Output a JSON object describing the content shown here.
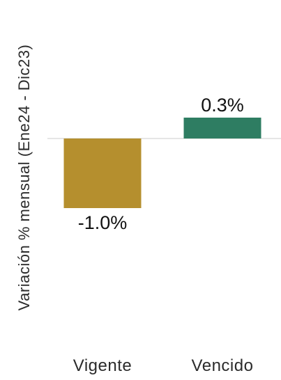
{
  "chart_data": {
    "type": "bar",
    "title": "",
    "xlabel": "",
    "ylabel": "Variación % mensual (Ene24 - Dic23)",
    "categories": [
      "Vigente",
      "Vencido"
    ],
    "values": [
      -1.0,
      0.3
    ],
    "value_labels": [
      "-1.0%",
      "0.3%"
    ],
    "colors": [
      "#B58F2E",
      "#2E7D62"
    ],
    "ylim": [
      -3.0,
      0.6
    ],
    "grid": false,
    "legend": "none"
  }
}
